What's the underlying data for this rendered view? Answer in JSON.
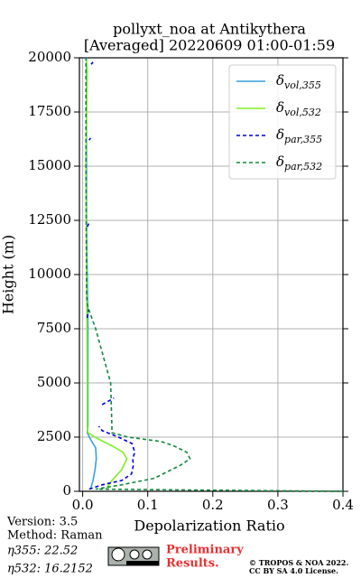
{
  "chart_data": {
    "type": "line",
    "title": "pollyxt_noa at Antikythera",
    "subtitle": "[Averaged] 20220609 01:00-01:59",
    "xlabel": "Depolarization Ratio",
    "ylabel": "Height (m)",
    "xlim": [
      -0.005,
      0.4
    ],
    "ylim": [
      0,
      20000
    ],
    "xticks": [
      {
        "value": 0,
        "label": "0.0"
      },
      0.1,
      0.2,
      0.3,
      0.4
    ],
    "yticks": [
      0,
      2500,
      5000,
      7500,
      10000,
      12500,
      15000,
      17500,
      20000
    ],
    "grid": true,
    "legend": "upper right",
    "series": [
      {
        "name": "δvol,355",
        "color": "#3a9ee0",
        "dash": false,
        "x": [
          0.012,
          0.016,
          0.019,
          0.021,
          0.02,
          0.012,
          0.007,
          0.008,
          0.008,
          0.008,
          0.007,
          0.006,
          0.006,
          0.006,
          0.006
        ],
        "y": [
          100,
          500,
          1000,
          1500,
          2000,
          2400,
          2700,
          3000,
          5000,
          7500,
          10000,
          12500,
          15000,
          17500,
          20000
        ]
      },
      {
        "name": "δvol,532",
        "color": "#80f020",
        "dash": false,
        "x": [
          0.036,
          0.045,
          0.06,
          0.068,
          0.062,
          0.045,
          0.025,
          0.008,
          0.007,
          0.007,
          0.006,
          0.005,
          0.006,
          0.007,
          0.005
        ],
        "y": [
          100,
          500,
          1000,
          1500,
          1800,
          2100,
          2400,
          2700,
          3000,
          5000,
          10000,
          15000,
          17500,
          19500,
          20000
        ]
      },
      {
        "name": "δpar,355",
        "color": "#0000dd",
        "dash": true,
        "x": [
          0.01,
          0.03,
          0.06,
          0.075,
          0.078,
          0.077,
          0.08,
          0.076,
          0.055,
          0.03,
          0.025,
          null,
          0.03,
          0.048,
          null,
          0.007,
          0.009,
          null,
          0.007,
          0.01,
          null,
          0.01,
          0.012,
          null,
          0.013,
          0.016
        ],
        "y": [
          100,
          300,
          500,
          800,
          1200,
          1500,
          1800,
          2200,
          2500,
          2800,
          3000,
          null,
          4000,
          4300,
          null,
          8000,
          8400,
          null,
          12200,
          12400,
          null,
          16200,
          16300,
          null,
          19700,
          19800
        ]
      },
      {
        "name": "δpar,532",
        "color": "#118840",
        "dash": true,
        "x": [
          0.4,
          0.02,
          0.06,
          0.11,
          0.13,
          0.15,
          0.165,
          0.16,
          0.14,
          0.12,
          0.07,
          0.045,
          0.045,
          0.043,
          0.02,
          0.008,
          0.006,
          0.005,
          0.005
        ],
        "y": [
          0,
          100,
          300,
          600,
          900,
          1200,
          1500,
          1800,
          2100,
          2300,
          2500,
          2700,
          3000,
          5000,
          7500,
          8500,
          9000,
          15000,
          20000
        ]
      }
    ]
  },
  "footer": {
    "version": "Version: 3.5",
    "method": "Method: Raman",
    "eta355": "η355:  22.52",
    "eta532": "η532: 16.2152",
    "preliminary": "Preliminary",
    "results": "Results.",
    "copyright": "© TROPOS & NOA 2022.",
    "license": "CC BY SA 4.0 License."
  }
}
